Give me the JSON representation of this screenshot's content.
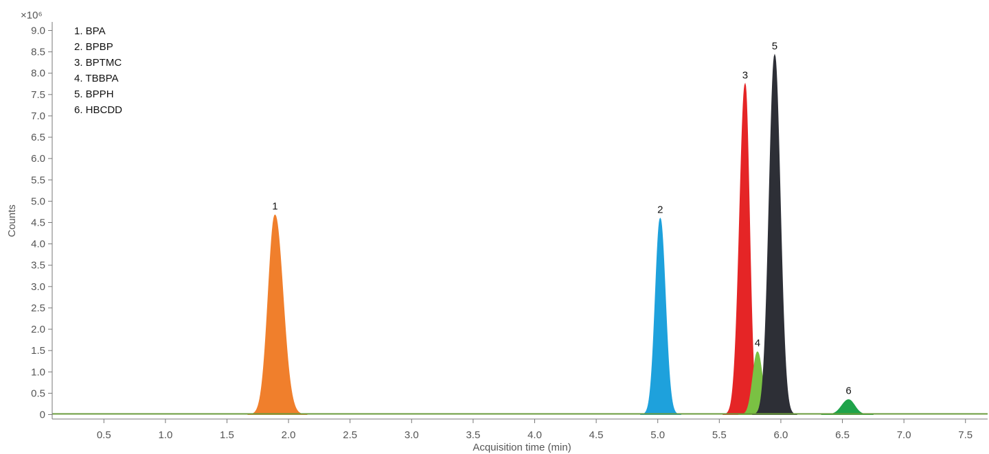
{
  "chart_data": {
    "type": "area",
    "scale_label": "×10⁶",
    "ylabel": "Counts",
    "xlabel": "Acquisition time (min)",
    "xlim": [
      0.08,
      7.68
    ],
    "ylim": [
      0,
      9.0
    ],
    "xticks": [
      "0.5",
      "1.0",
      "1.5",
      "2.0",
      "2.5",
      "3.0",
      "3.5",
      "4.0",
      "4.5",
      "5.0",
      "5.5",
      "6.0",
      "6.5",
      "7.0",
      "7.5"
    ],
    "yticks": [
      "0",
      "0.5",
      "1.0",
      "1.5",
      "2.0",
      "2.5",
      "3.0",
      "3.5",
      "4.0",
      "4.5",
      "5.0",
      "5.5",
      "6.0",
      "6.5",
      "7.0",
      "7.5",
      "8.0",
      "8.5",
      "9.0"
    ],
    "legend_entries": [
      "1.  BPA",
      "2.  BPBP",
      "3.  BPTMC",
      "4.  TBBPA",
      "5.  BPPH",
      "6.  HBCDD"
    ],
    "legend_position": "top-left",
    "series": [
      {
        "label": "1",
        "retention_time": 1.89,
        "apex": 4.68,
        "sigma_left": 0.055,
        "sigma_right": 0.065,
        "color": "#f07f2c"
      },
      {
        "label": "2",
        "retention_time": 5.02,
        "apex": 4.6,
        "sigma_left": 0.04,
        "sigma_right": 0.042,
        "color": "#1ea1dc"
      },
      {
        "label": "3",
        "retention_time": 5.71,
        "apex": 7.75,
        "sigma_left": 0.045,
        "sigma_right": 0.035,
        "color": "#e52526"
      },
      {
        "label": "4",
        "retention_time": 5.81,
        "apex": 1.47,
        "sigma_left": 0.038,
        "sigma_right": 0.04,
        "color": "#7ac143"
      },
      {
        "label": "5",
        "retention_time": 5.95,
        "apex": 8.43,
        "sigma_left": 0.045,
        "sigma_right": 0.045,
        "color": "#2d2f36"
      },
      {
        "label": "6",
        "retention_time": 6.55,
        "apex": 0.35,
        "sigma_left": 0.055,
        "sigma_right": 0.05,
        "color": "#1fa34a"
      }
    ],
    "baseline_color": "#6a9b3b"
  }
}
